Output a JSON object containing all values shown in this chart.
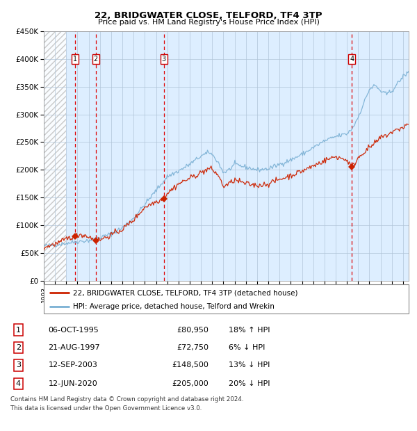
{
  "title": "22, BRIDGWATER CLOSE, TELFORD, TF4 3TP",
  "subtitle": "Price paid vs. HM Land Registry's House Price Index (HPI)",
  "legend_line1": "22, BRIDGWATER CLOSE, TELFORD, TF4 3TP (detached house)",
  "legend_line2": "HPI: Average price, detached house, Telford and Wrekin",
  "footer1": "Contains HM Land Registry data © Crown copyright and database right 2024.",
  "footer2": "This data is licensed under the Open Government Licence v3.0.",
  "transactions": [
    {
      "num": 1,
      "date": "06-OCT-1995",
      "price": 80950,
      "pct": "18%",
      "dir": "↑",
      "year": 1995.76
    },
    {
      "num": 2,
      "date": "21-AUG-1997",
      "price": 72750,
      "pct": "6%",
      "dir": "↓",
      "year": 1997.63
    },
    {
      "num": 3,
      "date": "12-SEP-2003",
      "price": 148500,
      "pct": "13%",
      "dir": "↓",
      "year": 2003.7
    },
    {
      "num": 4,
      "date": "12-JUN-2020",
      "price": 205000,
      "pct": "20%",
      "dir": "↓",
      "year": 2020.45
    }
  ],
  "hpi_color": "#7ab0d4",
  "price_color": "#cc2200",
  "background_chart": "#ddeeff",
  "grid_color": "#b0c4d8",
  "dashed_color": "#dd0000",
  "ylim": [
    0,
    450000
  ],
  "xlim_start": 1993.0,
  "xlim_end": 2025.5,
  "hatch_end": 1995.0
}
